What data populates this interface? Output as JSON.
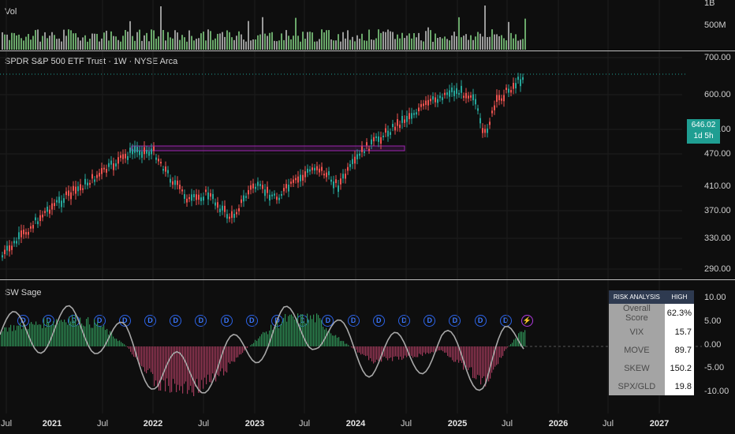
{
  "volume_pane": {
    "label": "Vol",
    "axis": [
      "1B",
      "500M"
    ]
  },
  "price_pane": {
    "title": "SPDR S&P 500 ETF Trust · 1W · NYSE Arca",
    "axis": [
      "700.00",
      "600.00",
      "520.00",
      "470.00",
      "410.00",
      "370.00",
      "330.00",
      "290.00"
    ],
    "last_price": "646.02",
    "countdown": "1d 5h",
    "dividend_marker": "D",
    "dividend_count": 20,
    "colors": {
      "up": "#26a69a",
      "down": "#ef5350",
      "resistance_box": "#9c27b0",
      "price_tag": "#1f9e92"
    }
  },
  "indicator_pane": {
    "name": "SW Sage",
    "axis": [
      "10.00",
      "5.00",
      "0.00",
      "-5.00",
      "-10.00"
    ],
    "risk_table": {
      "header": [
        "RISK ANALYSIS",
        "HIGH"
      ],
      "rows": [
        {
          "key": "Overall Score",
          "value": "62.3%"
        },
        {
          "key": "VIX",
          "value": "15.7"
        },
        {
          "key": "MOVE",
          "value": "89.7"
        },
        {
          "key": "SKEW",
          "value": "150.2"
        },
        {
          "key": "SPX/GLD",
          "value": "19.8"
        }
      ]
    }
  },
  "time_axis": [
    {
      "label": "Jul",
      "bold": false
    },
    {
      "label": "2021",
      "bold": true
    },
    {
      "label": "Jul",
      "bold": false
    },
    {
      "label": "2022",
      "bold": true
    },
    {
      "label": "Jul",
      "bold": false
    },
    {
      "label": "2023",
      "bold": true
    },
    {
      "label": "Jul",
      "bold": false
    },
    {
      "label": "2024",
      "bold": true
    },
    {
      "label": "Jul",
      "bold": false
    },
    {
      "label": "2025",
      "bold": true
    },
    {
      "label": "Jul",
      "bold": false
    },
    {
      "label": "2026",
      "bold": true
    },
    {
      "label": "Jul",
      "bold": false
    },
    {
      "label": "2027",
      "bold": true
    }
  ]
}
